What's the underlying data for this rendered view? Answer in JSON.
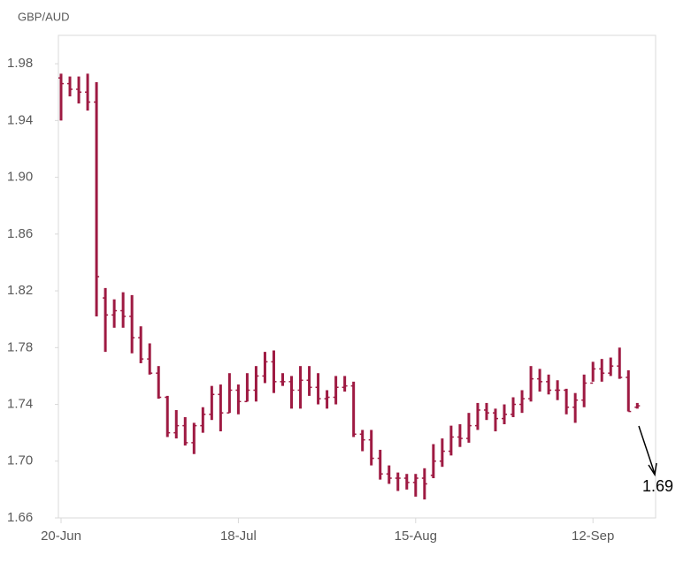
{
  "chart_data": {
    "type": "ohlc",
    "axis_label": "GBP/AUD",
    "annotation": "1.69",
    "color": "#9e1a42",
    "ylim": [
      1.66,
      2.0
    ],
    "yticks": [
      1.66,
      {
        "value": 1.7,
        "label": "1.70"
      },
      1.74,
      1.78,
      1.82,
      1.86,
      {
        "value": 1.9,
        "label": "1.90"
      },
      1.94,
      1.98
    ],
    "categories": [
      "20-Jun",
      null,
      null,
      null,
      null,
      null,
      null,
      null,
      null,
      null,
      null,
      null,
      null,
      null,
      null,
      null,
      null,
      null,
      null,
      null,
      "18-Jul",
      null,
      null,
      null,
      null,
      null,
      null,
      null,
      null,
      null,
      null,
      null,
      null,
      null,
      null,
      null,
      null,
      null,
      null,
      null,
      "15-Aug",
      null,
      null,
      null,
      null,
      null,
      null,
      null,
      null,
      null,
      null,
      null,
      null,
      null,
      null,
      null,
      null,
      null,
      null,
      null,
      "12-Sep",
      null,
      null,
      null,
      null,
      null
    ],
    "series": [
      {
        "name": "GBP/AUD",
        "open": [
          1.97,
          1.966,
          1.962,
          1.96,
          1.953,
          1.815,
          1.803,
          1.806,
          1.802,
          1.787,
          1.772,
          1.762,
          1.745,
          1.72,
          1.725,
          1.713,
          1.725,
          1.733,
          1.747,
          1.734,
          1.75,
          1.742,
          1.75,
          1.76,
          1.77,
          1.756,
          1.756,
          1.75,
          1.757,
          1.752,
          1.744,
          1.745,
          1.752,
          1.753,
          1.719,
          1.715,
          1.702,
          1.691,
          1.688,
          1.688,
          1.685,
          1.688,
          1.69,
          1.7,
          1.707,
          1.717,
          1.716,
          1.725,
          1.736,
          1.734,
          1.73,
          1.733,
          1.74,
          1.744,
          1.758,
          1.756,
          1.75,
          1.75,
          1.738,
          1.743,
          1.755,
          1.765,
          1.762,
          1.767,
          1.759,
          1.738
        ],
        "high": [
          1.973,
          1.971,
          1.971,
          1.973,
          1.967,
          1.822,
          1.814,
          1.819,
          1.817,
          1.795,
          1.783,
          1.767,
          1.746,
          1.736,
          1.731,
          1.727,
          1.738,
          1.753,
          1.754,
          1.762,
          1.754,
          1.762,
          1.767,
          1.777,
          1.778,
          1.762,
          1.76,
          1.767,
          1.767,
          1.762,
          1.75,
          1.76,
          1.76,
          1.756,
          1.722,
          1.722,
          1.708,
          1.697,
          1.692,
          1.691,
          1.691,
          1.695,
          1.712,
          1.716,
          1.725,
          1.726,
          1.734,
          1.741,
          1.741,
          1.737,
          1.74,
          1.745,
          1.75,
          1.767,
          1.765,
          1.761,
          1.757,
          1.751,
          1.748,
          1.761,
          1.77,
          1.772,
          1.773,
          1.78,
          1.764,
          1.741
        ],
        "low": [
          1.94,
          1.957,
          1.952,
          1.947,
          1.802,
          1.777,
          1.794,
          1.794,
          1.776,
          1.769,
          1.761,
          1.744,
          1.717,
          1.716,
          1.711,
          1.705,
          1.72,
          1.729,
          1.721,
          1.734,
          1.733,
          1.742,
          1.742,
          1.755,
          1.748,
          1.753,
          1.737,
          1.737,
          1.746,
          1.74,
          1.737,
          1.74,
          1.749,
          1.717,
          1.707,
          1.697,
          1.687,
          1.684,
          1.679,
          1.68,
          1.675,
          1.673,
          1.688,
          1.696,
          1.704,
          1.71,
          1.713,
          1.722,
          1.729,
          1.721,
          1.726,
          1.731,
          1.734,
          1.742,
          1.749,
          1.747,
          1.743,
          1.733,
          1.727,
          1.738,
          1.756,
          1.756,
          1.76,
          1.758,
          1.735,
          1.737
        ],
        "close": [
          1.966,
          1.962,
          1.96,
          1.953,
          1.83,
          1.803,
          1.806,
          1.802,
          1.787,
          1.772,
          1.762,
          1.745,
          1.72,
          1.725,
          1.713,
          1.725,
          1.733,
          1.747,
          1.734,
          1.75,
          1.742,
          1.75,
          1.76,
          1.77,
          1.756,
          1.756,
          1.75,
          1.757,
          1.752,
          1.744,
          1.745,
          1.752,
          1.753,
          1.719,
          1.715,
          1.702,
          1.691,
          1.688,
          1.688,
          1.685,
          1.688,
          1.684,
          1.7,
          1.707,
          1.717,
          1.716,
          1.725,
          1.736,
          1.734,
          1.73,
          1.733,
          1.74,
          1.744,
          1.758,
          1.756,
          1.75,
          1.75,
          1.738,
          1.743,
          1.755,
          1.765,
          1.762,
          1.767,
          1.759,
          1.735,
          1.739
        ]
      }
    ]
  }
}
